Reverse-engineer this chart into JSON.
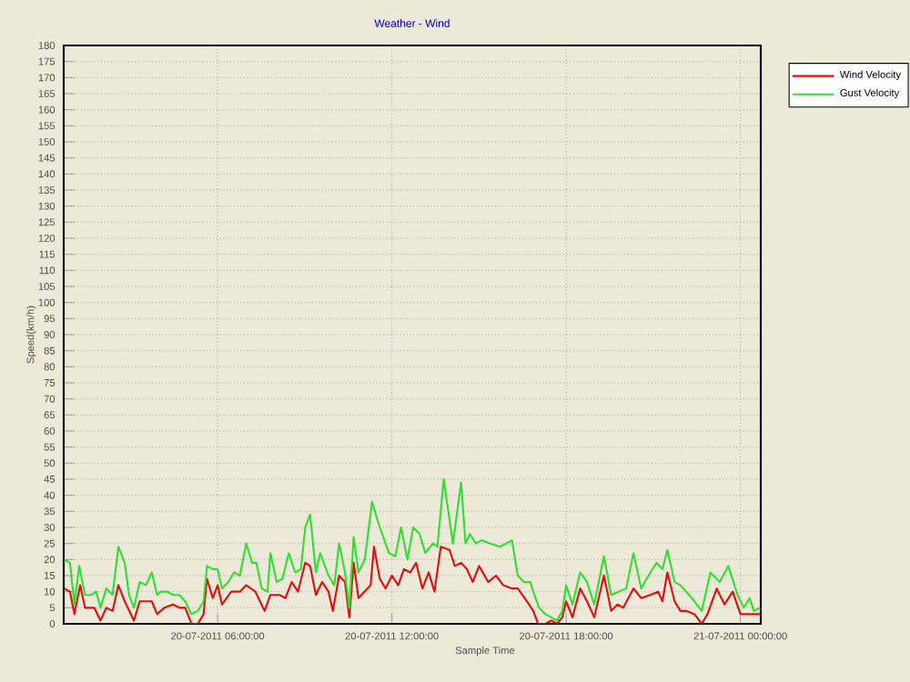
{
  "chart_data": {
    "type": "line",
    "title": "Weather - Wind",
    "xlabel": "Sample Time",
    "ylabel": "Speed(km/h)",
    "xlim": [
      "2011-07-20T00:42",
      "2011-07-21T00:42"
    ],
    "xticks": [
      {
        "value": "2011-07-20T06:00",
        "label": "20-07-2011 06:00:00"
      },
      {
        "value": "2011-07-20T12:00",
        "label": "20-07-2011 12:00:00"
      },
      {
        "value": "2011-07-20T18:00",
        "label": "20-07-2011 18:00:00"
      },
      {
        "value": "2011-07-21T00:00",
        "label": "21-07-2011 00:00:00"
      }
    ],
    "ylim": [
      0,
      180
    ],
    "yticks": [
      0,
      5,
      10,
      15,
      20,
      25,
      30,
      35,
      40,
      45,
      50,
      55,
      60,
      65,
      70,
      75,
      80,
      85,
      90,
      95,
      100,
      105,
      110,
      115,
      120,
      125,
      130,
      135,
      140,
      145,
      150,
      155,
      160,
      165,
      170,
      175,
      180
    ],
    "grid": true,
    "legend": "top right",
    "marker": "none",
    "line_style": "solid",
    "series": [
      {
        "name": "Wind Velocity",
        "color": "#dd1111",
        "x": [
          "2011-07-20T00:43",
          "2011-07-20T00:55",
          "2011-07-20T01:04",
          "2011-07-20T01:16",
          "2011-07-20T01:26",
          "2011-07-20T01:45",
          "2011-07-20T01:58",
          "2011-07-20T02:10",
          "2011-07-20T02:23",
          "2011-07-20T02:35",
          "2011-07-20T02:48",
          "2011-07-20T03:07",
          "2011-07-20T03:19",
          "2011-07-20T03:32",
          "2011-07-20T03:44",
          "2011-07-20T03:55",
          "2011-07-20T04:10",
          "2011-07-20T04:28",
          "2011-07-20T04:41",
          "2011-07-20T04:53",
          "2011-07-20T05:06",
          "2011-07-20T05:19",
          "2011-07-20T05:31",
          "2011-07-20T05:38",
          "2011-07-20T05:50",
          "2011-07-20T06:00",
          "2011-07-20T06:09",
          "2011-07-20T06:28",
          "2011-07-20T06:46",
          "2011-07-20T06:59",
          "2011-07-20T07:18",
          "2011-07-20T07:37",
          "2011-07-20T07:49",
          "2011-07-20T08:08",
          "2011-07-20T08:20",
          "2011-07-20T08:33",
          "2011-07-20T08:46",
          "2011-07-20T09:01",
          "2011-07-20T09:11",
          "2011-07-20T09:23",
          "2011-07-20T09:36",
          "2011-07-20T09:49",
          "2011-07-20T09:58",
          "2011-07-20T10:11",
          "2011-07-20T10:23",
          "2011-07-20T10:32",
          "2011-07-20T10:41",
          "2011-07-20T10:51",
          "2011-07-20T11:16",
          "2011-07-20T11:23",
          "2011-07-20T11:35",
          "2011-07-20T11:47",
          "2011-07-20T12:00",
          "2011-07-20T12:13",
          "2011-07-20T12:25",
          "2011-07-20T12:38",
          "2011-07-20T12:50",
          "2011-07-20T13:03",
          "2011-07-20T13:16",
          "2011-07-20T13:28",
          "2011-07-20T13:41",
          "2011-07-20T13:59",
          "2011-07-20T14:10",
          "2011-07-20T14:23",
          "2011-07-20T14:35",
          "2011-07-20T14:47",
          "2011-07-20T15:00",
          "2011-07-20T15:19",
          "2011-07-20T15:35",
          "2011-07-20T15:50",
          "2011-07-20T16:08",
          "2011-07-20T16:20",
          "2011-07-20T16:39",
          "2011-07-20T16:52",
          "2011-07-20T17:02",
          "2011-07-20T17:17",
          "2011-07-20T17:29",
          "2011-07-20T17:41",
          "2011-07-20T17:52",
          "2011-07-20T18:00",
          "2011-07-20T18:13",
          "2011-07-20T18:29",
          "2011-07-20T18:43",
          "2011-07-20T18:58",
          "2011-07-20T19:18",
          "2011-07-20T19:33",
          "2011-07-20T19:46",
          "2011-07-20T19:58",
          "2011-07-20T20:19",
          "2011-07-20T20:35",
          "2011-07-20T20:54",
          "2011-07-20T21:10",
          "2011-07-20T21:19",
          "2011-07-20T21:29",
          "2011-07-20T21:44",
          "2011-07-20T21:56",
          "2011-07-20T22:08",
          "2011-07-20T22:25",
          "2011-07-20T22:40",
          "2011-07-20T22:52",
          "2011-07-20T23:11",
          "2011-07-20T23:27",
          "2011-07-20T23:44",
          "2011-07-21T00:00",
          "2011-07-21T00:19",
          "2011-07-21T00:41"
        ],
        "values": [
          11,
          10,
          3,
          12,
          5,
          5,
          1,
          5,
          4,
          12,
          7,
          1,
          7,
          7,
          7,
          3,
          5,
          6,
          5,
          5,
          0,
          0,
          3,
          14,
          8,
          12,
          6,
          10,
          10,
          12,
          10,
          4,
          9,
          9,
          8,
          13,
          10,
          19,
          18,
          9,
          13,
          10,
          4,
          15,
          13,
          2,
          19,
          8,
          12,
          24,
          14,
          11,
          15,
          12,
          17,
          16,
          19,
          11,
          16,
          10,
          24,
          23,
          18,
          19,
          17,
          13,
          18,
          13,
          15,
          12,
          11,
          11,
          7,
          4,
          0,
          0,
          1,
          0,
          2,
          7,
          2,
          11,
          7,
          2,
          15,
          4,
          6,
          5,
          11,
          8,
          9,
          10,
          7,
          16,
          7,
          4,
          4,
          3,
          0,
          3,
          11,
          6,
          10,
          3,
          3,
          3
        ]
      },
      {
        "name": "Gust Velocity",
        "color": "#33dd33",
        "x": [
          "2011-07-20T00:43",
          "2011-07-20T00:55",
          "2011-07-20T01:04",
          "2011-07-20T01:14",
          "2011-07-20T01:26",
          "2011-07-20T01:39",
          "2011-07-20T01:49",
          "2011-07-20T01:58",
          "2011-07-20T02:10",
          "2011-07-20T02:23",
          "2011-07-20T02:35",
          "2011-07-20T02:48",
          "2011-07-20T02:57",
          "2011-07-20T03:07",
          "2011-07-20T03:19",
          "2011-07-20T03:32",
          "2011-07-20T03:44",
          "2011-07-20T03:55",
          "2011-07-20T04:03",
          "2011-07-20T04:16",
          "2011-07-20T04:28",
          "2011-07-20T04:41",
          "2011-07-20T04:53",
          "2011-07-20T05:06",
          "2011-07-20T05:19",
          "2011-07-20T05:31",
          "2011-07-20T05:38",
          "2011-07-20T05:50",
          "2011-07-20T06:00",
          "2011-07-20T06:09",
          "2011-07-20T06:22",
          "2011-07-20T06:34",
          "2011-07-20T06:46",
          "2011-07-20T06:59",
          "2011-07-20T07:11",
          "2011-07-20T07:20",
          "2011-07-20T07:31",
          "2011-07-20T07:43",
          "2011-07-20T07:49",
          "2011-07-20T08:02",
          "2011-07-20T08:14",
          "2011-07-20T08:27",
          "2011-07-20T08:40",
          "2011-07-20T08:52",
          "2011-07-20T09:01",
          "2011-07-20T09:11",
          "2011-07-20T09:23",
          "2011-07-20T09:32",
          "2011-07-20T09:49",
          "2011-07-20T10:01",
          "2011-07-20T10:11",
          "2011-07-20T10:23",
          "2011-07-20T10:32",
          "2011-07-20T10:41",
          "2011-07-20T10:51",
          "2011-07-20T11:04",
          "2011-07-20T11:19",
          "2011-07-20T11:35",
          "2011-07-20T11:54",
          "2011-07-20T12:07",
          "2011-07-20T12:19",
          "2011-07-20T12:32",
          "2011-07-20T12:44",
          "2011-07-20T12:57",
          "2011-07-20T13:09",
          "2011-07-20T13:25",
          "2011-07-20T13:34",
          "2011-07-20T13:47",
          "2011-07-20T14:06",
          "2011-07-20T14:23",
          "2011-07-20T14:32",
          "2011-07-20T14:41",
          "2011-07-20T14:53",
          "2011-07-20T15:06",
          "2011-07-20T15:23",
          "2011-07-20T15:43",
          "2011-07-20T15:56",
          "2011-07-20T16:08",
          "2011-07-20T16:20",
          "2011-07-20T16:33",
          "2011-07-20T16:46",
          "2011-07-20T16:52",
          "2011-07-20T17:04",
          "2011-07-20T17:17",
          "2011-07-20T17:29",
          "2011-07-20T17:41",
          "2011-07-20T17:52",
          "2011-07-20T18:00",
          "2011-07-20T18:13",
          "2011-07-20T18:29",
          "2011-07-20T18:43",
          "2011-07-20T18:58",
          "2011-07-20T19:18",
          "2011-07-20T19:33",
          "2011-07-20T19:48",
          "2011-07-20T20:04",
          "2011-07-20T20:19",
          "2011-07-20T20:35",
          "2011-07-20T20:54",
          "2011-07-20T21:07",
          "2011-07-20T21:19",
          "2011-07-20T21:29",
          "2011-07-20T21:44",
          "2011-07-20T21:56",
          "2011-07-20T22:08",
          "2011-07-20T22:25",
          "2011-07-20T22:40",
          "2011-07-20T22:58",
          "2011-07-20T23:17",
          "2011-07-20T23:35",
          "2011-07-20T23:54",
          "2011-07-21T00:07",
          "2011-07-21T00:19",
          "2011-07-21T00:28",
          "2011-07-21T00:41"
        ],
        "values": [
          20,
          19,
          6,
          18,
          9,
          9,
          10,
          5,
          11,
          9,
          24,
          19,
          9,
          5,
          13,
          12,
          16,
          9,
          10,
          10,
          9,
          9,
          7,
          3,
          4,
          7,
          18,
          17,
          17,
          11,
          13,
          16,
          15,
          25,
          19,
          19,
          11,
          10,
          22,
          13,
          14,
          22,
          16,
          17,
          30,
          34,
          16,
          22,
          15,
          12,
          25,
          16,
          5,
          27,
          16,
          20,
          38,
          30,
          22,
          21,
          30,
          20,
          30,
          28,
          22,
          25,
          24,
          45,
          25,
          44,
          25,
          28,
          25,
          26,
          25,
          24,
          25,
          26,
          15,
          13,
          13,
          10,
          5,
          3,
          2,
          1,
          4,
          12,
          6,
          16,
          13,
          6,
          21,
          9,
          10,
          11,
          22,
          11,
          16,
          19,
          17,
          23,
          13,
          12,
          10,
          7,
          4,
          16,
          13,
          18,
          9,
          5,
          8,
          4,
          5
        ]
      }
    ]
  }
}
